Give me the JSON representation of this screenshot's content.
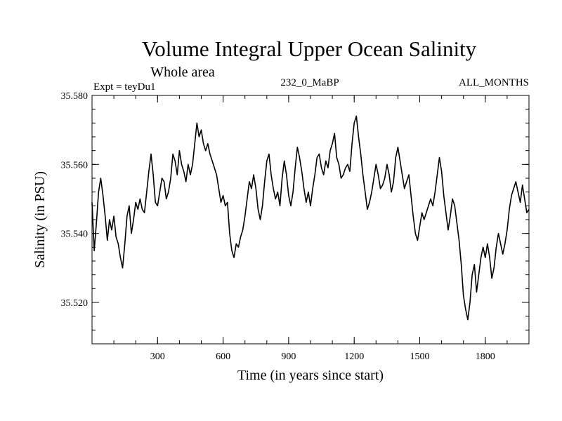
{
  "chart_data": {
    "type": "line",
    "title": "Volume Integral Upper Ocean Salinity",
    "subtitle": "Whole area",
    "annotations": {
      "left": "Expt = teyDu1",
      "center": "232_0_MaBP",
      "right": "ALL_MONTHS"
    },
    "xlabel": "Time (in years since start)",
    "ylabel": "Salinity (in PSU)",
    "xlim": [
      0,
      2000
    ],
    "ylim": [
      35.508,
      35.58
    ],
    "x_ticks": [
      {
        "value": 300,
        "label": "300"
      },
      {
        "value": 600,
        "label": "600"
      },
      {
        "value": 900,
        "label": "900"
      },
      {
        "value": 1200,
        "label": "1200"
      },
      {
        "value": 1500,
        "label": "1500"
      },
      {
        "value": 1800,
        "label": "1800"
      }
    ],
    "x_minor_step": 100,
    "y_ticks": [
      {
        "value": 35.52,
        "label": "35.520"
      },
      {
        "value": 35.54,
        "label": "35.540"
      },
      {
        "value": 35.56,
        "label": "35.560"
      },
      {
        "value": 35.58,
        "label": "35.580"
      }
    ],
    "y_minor_step": 0.004,
    "grid": false,
    "series": [
      {
        "name": "salinity",
        "color": "#000000",
        "points": [
          [
            0,
            35.549
          ],
          [
            10,
            35.535
          ],
          [
            20,
            35.543
          ],
          [
            30,
            35.552
          ],
          [
            40,
            35.556
          ],
          [
            50,
            35.551
          ],
          [
            60,
            35.545
          ],
          [
            70,
            35.538
          ],
          [
            80,
            35.544
          ],
          [
            90,
            35.541
          ],
          [
            100,
            35.545
          ],
          [
            110,
            35.539
          ],
          [
            120,
            35.537
          ],
          [
            130,
            35.533
          ],
          [
            140,
            35.53
          ],
          [
            150,
            35.537
          ],
          [
            160,
            35.545
          ],
          [
            170,
            35.548
          ],
          [
            180,
            35.54
          ],
          [
            190,
            35.544
          ],
          [
            200,
            35.549
          ],
          [
            210,
            35.547
          ],
          [
            220,
            35.55
          ],
          [
            230,
            35.547
          ],
          [
            240,
            35.546
          ],
          [
            250,
            35.552
          ],
          [
            260,
            35.558
          ],
          [
            270,
            35.563
          ],
          [
            280,
            35.557
          ],
          [
            290,
            35.549
          ],
          [
            300,
            35.548
          ],
          [
            310,
            35.552
          ],
          [
            320,
            35.556
          ],
          [
            330,
            35.555
          ],
          [
            340,
            35.55
          ],
          [
            350,
            35.552
          ],
          [
            360,
            35.556
          ],
          [
            370,
            35.563
          ],
          [
            380,
            35.561
          ],
          [
            390,
            35.557
          ],
          [
            400,
            35.564
          ],
          [
            410,
            35.56
          ],
          [
            420,
            35.558
          ],
          [
            430,
            35.555
          ],
          [
            440,
            35.56
          ],
          [
            450,
            35.557
          ],
          [
            460,
            35.56
          ],
          [
            470,
            35.566
          ],
          [
            480,
            35.572
          ],
          [
            490,
            35.568
          ],
          [
            500,
            35.57
          ],
          [
            510,
            35.566
          ],
          [
            520,
            35.564
          ],
          [
            530,
            35.566
          ],
          [
            540,
            35.563
          ],
          [
            550,
            35.561
          ],
          [
            560,
            35.559
          ],
          [
            570,
            35.557
          ],
          [
            580,
            35.553
          ],
          [
            590,
            35.549
          ],
          [
            600,
            35.551
          ],
          [
            610,
            35.548
          ],
          [
            620,
            35.549
          ],
          [
            630,
            35.54
          ],
          [
            640,
            35.535
          ],
          [
            650,
            35.533
          ],
          [
            660,
            35.537
          ],
          [
            670,
            35.536
          ],
          [
            680,
            35.539
          ],
          [
            690,
            35.541
          ],
          [
            700,
            35.545
          ],
          [
            710,
            35.55
          ],
          [
            720,
            35.555
          ],
          [
            730,
            35.553
          ],
          [
            740,
            35.557
          ],
          [
            750,
            35.553
          ],
          [
            760,
            35.547
          ],
          [
            770,
            35.544
          ],
          [
            780,
            35.548
          ],
          [
            790,
            35.555
          ],
          [
            800,
            35.561
          ],
          [
            810,
            35.563
          ],
          [
            820,
            35.557
          ],
          [
            830,
            35.553
          ],
          [
            840,
            35.55
          ],
          [
            850,
            35.552
          ],
          [
            860,
            35.548
          ],
          [
            870,
            35.556
          ],
          [
            880,
            35.561
          ],
          [
            890,
            35.557
          ],
          [
            900,
            35.551
          ],
          [
            910,
            35.548
          ],
          [
            920,
            35.552
          ],
          [
            930,
            35.559
          ],
          [
            940,
            35.565
          ],
          [
            950,
            35.562
          ],
          [
            960,
            35.558
          ],
          [
            970,
            35.553
          ],
          [
            980,
            35.549
          ],
          [
            990,
            35.552
          ],
          [
            1000,
            35.548
          ],
          [
            1010,
            35.553
          ],
          [
            1020,
            35.557
          ],
          [
            1030,
            35.562
          ],
          [
            1040,
            35.563
          ],
          [
            1050,
            35.559
          ],
          [
            1060,
            35.557
          ],
          [
            1070,
            35.561
          ],
          [
            1080,
            35.559
          ],
          [
            1090,
            35.564
          ],
          [
            1100,
            35.566
          ],
          [
            1110,
            35.569
          ],
          [
            1120,
            35.562
          ],
          [
            1130,
            35.56
          ],
          [
            1140,
            35.556
          ],
          [
            1150,
            35.557
          ],
          [
            1160,
            35.559
          ],
          [
            1170,
            35.56
          ],
          [
            1180,
            35.558
          ],
          [
            1190,
            35.566
          ],
          [
            1200,
            35.572
          ],
          [
            1210,
            35.574
          ],
          [
            1220,
            35.568
          ],
          [
            1230,
            35.563
          ],
          [
            1240,
            35.557
          ],
          [
            1250,
            35.552
          ],
          [
            1260,
            35.547
          ],
          [
            1270,
            35.549
          ],
          [
            1280,
            35.552
          ],
          [
            1290,
            35.556
          ],
          [
            1300,
            35.56
          ],
          [
            1310,
            35.557
          ],
          [
            1320,
            35.553
          ],
          [
            1330,
            35.554
          ],
          [
            1340,
            35.556
          ],
          [
            1350,
            35.56
          ],
          [
            1360,
            35.557
          ],
          [
            1370,
            35.552
          ],
          [
            1380,
            35.555
          ],
          [
            1390,
            35.562
          ],
          [
            1400,
            35.565
          ],
          [
            1410,
            35.561
          ],
          [
            1420,
            35.557
          ],
          [
            1430,
            35.553
          ],
          [
            1440,
            35.555
          ],
          [
            1450,
            35.557
          ],
          [
            1460,
            35.551
          ],
          [
            1470,
            35.545
          ],
          [
            1480,
            35.54
          ],
          [
            1490,
            35.538
          ],
          [
            1500,
            35.542
          ],
          [
            1510,
            35.546
          ],
          [
            1520,
            35.544
          ],
          [
            1530,
            35.546
          ],
          [
            1540,
            35.548
          ],
          [
            1550,
            35.55
          ],
          [
            1560,
            35.548
          ],
          [
            1570,
            35.552
          ],
          [
            1580,
            35.557
          ],
          [
            1590,
            35.562
          ],
          [
            1600,
            35.558
          ],
          [
            1610,
            35.551
          ],
          [
            1620,
            35.546
          ],
          [
            1630,
            35.541
          ],
          [
            1640,
            35.545
          ],
          [
            1650,
            35.55
          ],
          [
            1660,
            35.548
          ],
          [
            1670,
            35.543
          ],
          [
            1680,
            35.538
          ],
          [
            1690,
            35.531
          ],
          [
            1700,
            35.522
          ],
          [
            1710,
            35.518
          ],
          [
            1720,
            35.515
          ],
          [
            1730,
            35.52
          ],
          [
            1740,
            35.528
          ],
          [
            1750,
            35.531
          ],
          [
            1760,
            35.523
          ],
          [
            1770,
            35.528
          ],
          [
            1780,
            35.533
          ],
          [
            1790,
            35.536
          ],
          [
            1800,
            35.533
          ],
          [
            1810,
            35.537
          ],
          [
            1820,
            35.533
          ],
          [
            1830,
            35.527
          ],
          [
            1840,
            35.53
          ],
          [
            1850,
            35.536
          ],
          [
            1860,
            35.54
          ],
          [
            1870,
            35.537
          ],
          [
            1880,
            35.534
          ],
          [
            1890,
            35.537
          ],
          [
            1900,
            35.541
          ],
          [
            1910,
            35.547
          ],
          [
            1920,
            35.551
          ],
          [
            1930,
            35.553
          ],
          [
            1940,
            35.555
          ],
          [
            1950,
            35.552
          ],
          [
            1960,
            35.549
          ],
          [
            1970,
            35.554
          ],
          [
            1980,
            35.55
          ],
          [
            1990,
            35.546
          ],
          [
            2000,
            35.547
          ]
        ]
      }
    ]
  }
}
